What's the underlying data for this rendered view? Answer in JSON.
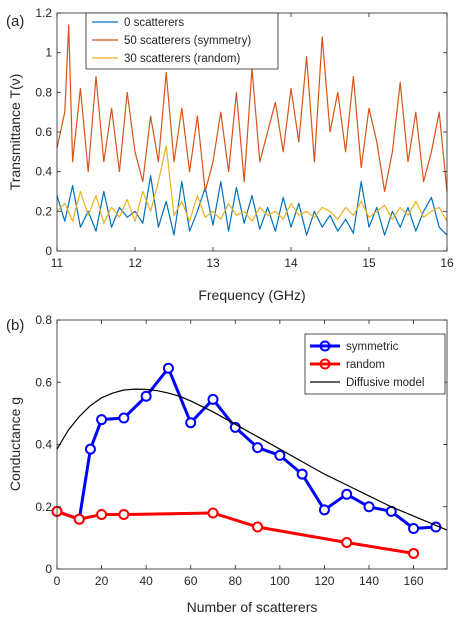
{
  "chart_data": [
    {
      "panel": "(a)",
      "type": "line",
      "xlabel": "Frequency (GHz)",
      "ylabel": "Transmittance T(ν)",
      "xlim": [
        11,
        16
      ],
      "ylim": [
        0,
        1.2
      ],
      "xticks": [
        "11",
        "12",
        "13",
        "14",
        "15",
        "16"
      ],
      "yticks": [
        "0",
        "0.2",
        "0.4",
        "0.6",
        "0.8",
        "1",
        "1.2"
      ],
      "legend_position": "top-left",
      "series": [
        {
          "name": "0 scatterers",
          "color": "#0072BD",
          "x": [
            11.0,
            11.1,
            11.2,
            11.3,
            11.4,
            11.5,
            11.6,
            11.7,
            11.8,
            11.9,
            12.0,
            12.1,
            12.2,
            12.3,
            12.4,
            12.5,
            12.6,
            12.7,
            12.8,
            12.9,
            13.0,
            13.1,
            13.2,
            13.3,
            13.4,
            13.5,
            13.6,
            13.7,
            13.8,
            13.9,
            14.0,
            14.1,
            14.2,
            14.3,
            14.4,
            14.5,
            14.6,
            14.7,
            14.8,
            14.9,
            15.0,
            15.1,
            15.2,
            15.3,
            15.4,
            15.5,
            15.6,
            15.7,
            15.8,
            15.9,
            16.0
          ],
          "y": [
            0.28,
            0.15,
            0.33,
            0.12,
            0.2,
            0.1,
            0.3,
            0.12,
            0.22,
            0.17,
            0.2,
            0.14,
            0.38,
            0.12,
            0.25,
            0.08,
            0.35,
            0.1,
            0.2,
            0.32,
            0.13,
            0.35,
            0.1,
            0.32,
            0.14,
            0.28,
            0.11,
            0.22,
            0.1,
            0.27,
            0.12,
            0.24,
            0.08,
            0.2,
            0.12,
            0.18,
            0.1,
            0.16,
            0.09,
            0.35,
            0.12,
            0.22,
            0.08,
            0.2,
            0.12,
            0.22,
            0.1,
            0.2,
            0.27,
            0.12,
            0.08
          ]
        },
        {
          "name": "50 scatterers (symmetry)",
          "color": "#D95319",
          "x": [
            11.0,
            11.1,
            11.15,
            11.2,
            11.3,
            11.4,
            11.5,
            11.6,
            11.7,
            11.8,
            11.9,
            12.0,
            12.1,
            12.2,
            12.3,
            12.4,
            12.5,
            12.6,
            12.7,
            12.8,
            12.9,
            13.0,
            13.1,
            13.2,
            13.3,
            13.4,
            13.5,
            13.6,
            13.7,
            13.8,
            13.9,
            14.0,
            14.1,
            14.2,
            14.3,
            14.4,
            14.5,
            14.6,
            14.7,
            14.8,
            14.9,
            15.0,
            15.1,
            15.2,
            15.3,
            15.4,
            15.5,
            15.6,
            15.7,
            15.8,
            15.9,
            16.0
          ],
          "y": [
            0.52,
            0.7,
            1.14,
            0.45,
            0.82,
            0.4,
            0.88,
            0.45,
            0.72,
            0.4,
            0.8,
            0.5,
            0.35,
            0.68,
            0.45,
            0.9,
            0.45,
            0.72,
            0.4,
            0.68,
            0.3,
            0.45,
            0.7,
            0.4,
            0.8,
            0.35,
            0.92,
            0.45,
            0.6,
            0.75,
            0.5,
            0.82,
            0.55,
            0.98,
            0.45,
            1.08,
            0.6,
            0.8,
            0.5,
            0.88,
            0.42,
            0.72,
            0.55,
            0.3,
            0.5,
            0.85,
            0.45,
            0.7,
            0.35,
            0.5,
            0.7,
            0.3
          ]
        },
        {
          "name": "30 scatterers (random)",
          "color": "#EDB120",
          "x": [
            11.0,
            11.1,
            11.2,
            11.3,
            11.4,
            11.5,
            11.6,
            11.7,
            11.8,
            11.9,
            12.0,
            12.1,
            12.2,
            12.3,
            12.4,
            12.5,
            12.6,
            12.7,
            12.8,
            12.9,
            13.0,
            13.1,
            13.2,
            13.3,
            13.4,
            13.5,
            13.6,
            13.7,
            13.8,
            13.9,
            14.0,
            14.1,
            14.2,
            14.3,
            14.4,
            14.5,
            14.6,
            14.7,
            14.8,
            14.9,
            15.0,
            15.1,
            15.2,
            15.3,
            15.4,
            15.5,
            15.6,
            15.7,
            15.8,
            15.9,
            16.0
          ],
          "y": [
            0.2,
            0.24,
            0.15,
            0.3,
            0.18,
            0.28,
            0.14,
            0.22,
            0.17,
            0.26,
            0.15,
            0.3,
            0.2,
            0.35,
            0.53,
            0.18,
            0.25,
            0.15,
            0.28,
            0.17,
            0.2,
            0.16,
            0.24,
            0.18,
            0.2,
            0.15,
            0.22,
            0.18,
            0.2,
            0.16,
            0.24,
            0.18,
            0.2,
            0.17,
            0.22,
            0.2,
            0.16,
            0.22,
            0.18,
            0.25,
            0.17,
            0.2,
            0.23,
            0.16,
            0.22,
            0.18,
            0.25,
            0.17,
            0.2,
            0.22,
            0.15
          ]
        }
      ]
    },
    {
      "panel": "(b)",
      "type": "line",
      "xlabel": "Number of scatterers",
      "ylabel": "Conductance g",
      "xlim": [
        0,
        175
      ],
      "ylim": [
        0,
        0.8
      ],
      "xticks": [
        "0",
        "20",
        "40",
        "60",
        "80",
        "100",
        "120",
        "140",
        "160"
      ],
      "yticks": [
        "0",
        "0.2",
        "0.4",
        "0.6",
        "0.8"
      ],
      "legend_position": "top-right",
      "series": [
        {
          "name": "symmetric",
          "color": "#0000FF",
          "marker": "circle",
          "x": [
            0,
            10,
            15,
            20,
            30,
            40,
            50,
            60,
            70,
            80,
            90,
            100,
            110,
            120,
            130,
            140,
            150,
            160,
            170
          ],
          "y": [
            0.185,
            0.16,
            0.385,
            0.48,
            0.485,
            0.555,
            0.645,
            0.47,
            0.545,
            0.455,
            0.39,
            0.365,
            0.305,
            0.19,
            0.24,
            0.2,
            0.185,
            0.13,
            0.135
          ]
        },
        {
          "name": "random",
          "color": "#FF0000",
          "marker": "circle",
          "x": [
            0,
            10,
            20,
            30,
            70,
            90,
            130,
            160
          ],
          "y": [
            0.185,
            0.16,
            0.175,
            0.175,
            0.18,
            0.135,
            0.085,
            0.05
          ]
        },
        {
          "name": "Diffusive model",
          "color": "#000000",
          "x": [
            0,
            5,
            10,
            15,
            20,
            25,
            30,
            35,
            40,
            45,
            50,
            55,
            60,
            70,
            80,
            90,
            100,
            110,
            120,
            130,
            140,
            150,
            160,
            170,
            175
          ],
          "y": [
            0.385,
            0.445,
            0.49,
            0.525,
            0.55,
            0.565,
            0.575,
            0.578,
            0.577,
            0.573,
            0.565,
            0.555,
            0.54,
            0.505,
            0.465,
            0.425,
            0.385,
            0.345,
            0.305,
            0.27,
            0.235,
            0.2,
            0.17,
            0.14,
            0.125
          ]
        }
      ]
    }
  ]
}
